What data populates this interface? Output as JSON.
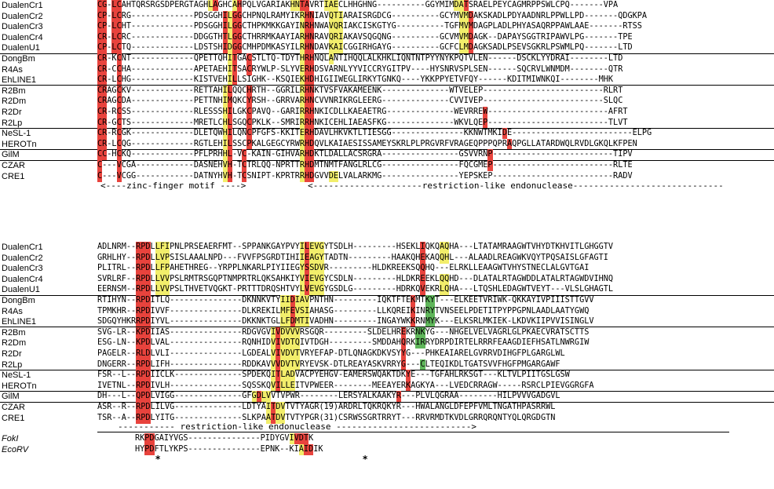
{
  "colors": {
    "R": "#e8433d",
    "Y": "#f2ee6b",
    "G": "#5fb65a"
  },
  "block1": {
    "groups": [
      [
        {
          "name": "DualenCr1",
          "seq": "CG-LCAHTQRSRGSDPERGTAGHLAGHCAHPQLVGARIAKHNTAVRTIAECLHHGHNG----------GGYMIMDATSRAELPEYCAGMRPPSWLCPQ-------VPA",
          "hl": "RRyRRwwwwwwwwwwwwwwwwwwyRwwwyRwwwwwwwwwwyyRRwwwyyywwwwwwwwwwwwwwwwwwwwwwwwyyRwwwwwwwwwwwwwwwwwwwwwwwwwwwwwwwwwwwww"
        },
        {
          "name": "DualenCr2",
          "seq": "CP-LCRG-------------PDSGGHILGGCHPNQLRAMYIKRHNIAVQTIARAISRGDCG----------GCYMVMDAKSKADLPDYAADNRLPPWLLPD-------QDGKPA",
          "hl": "RRwRRwwwwwwwwwwwwwwwwwwwwwRyRRwwwwwwwwwwwwyRRwwwyyywwwwwwwwwwwwwwwwwwwwwwwwyyRwwwwwwwwwwwwwwwwwwwwwwwwwwwwwwwwwwwwww"
        },
        {
          "name": "DualenCr3",
          "seq": "CP-LCHT-------------PDSGGHILGGCTHPKMKKGAYINRHNWAVQRIAKCISKGTYG----------TGFMVMDAGPLADLPHYASAQRPPAWLAAE-------RTSS",
          "hl": "RRwRRwwwwwwwwwwwwwwwwwwwwwRyRRwwwwwwwwwwwwyRRwwwyyywwwwwwwwwwwwwwwwwwwwwwwwyyRwwwwwwwwwwwwwwwwwwwwwwwwwwwwwwwwwwww"
        },
        {
          "name": "DualenCr4",
          "seq": "CR-LCRC-------------DDGGTHTLGGCTHRRMKAAYIARHNRAVQRIAKAVSQGQNG----------GCVMVMDAGK--DAPAYSGGTRIPAWVLPG-------TPE",
          "hl": "RRwRRwwwwwwwwwwwwwwwwwwwwwRyRRwwwwwwwwwwwwyRRwwwyyywwwwwwwwwwwwwwwwwwwwwwwwyyRwwwwwwwwwwwwwwwwwwwwwwwwwwwwwwwwww"
        },
        {
          "name": "DualenU1",
          "seq": "CP-LCTQ-------------LDSTSHIDGGCMHPDMKASYILRHNDAVKAICGGIRHGAYG----------GCFCLMDAGKSADLPSEVSGKRLPSWMLPQ-------LTD",
          "hl": "RRwRRwwwwwwwwwwwwwwwwwwwwwRyRRwwwwwwwwwwwwyRRwwwyyywwwwwwwwwwwwwwwwwwwwwwwwyyRwwwwwwwwwwwwwwwwwwwwwwwwwwwwwwwww"
        }
      ],
      [
        {
          "name": "DongBm",
          "seq": "CR-KCNT-------------QPETTQHITGACSTLTQ-TDYTHRHNQLANTIHQQLALKHKLIQNTNTPYYNYKPQTVLEN------DSCKLYYDRAI--------LTD",
          "hl": "RRwwRwwwwwwwwwwwwwwwwwwwwwwyRwwRwwwwwwwwwwyRRwwwywwwwwwwwwwwwwwwwwwwwwwwwwwwwwwwwwRwwwwwwwwwwwwwwwwwwwwwwwwwwww"
        },
        {
          "name": "R4As",
          "seq": "CR-CCHA-------------APETAEHITSACRYWLP-SLYVERHDSVARNLYYVICCRYGITPV----HYSNRVSPLSEN------SQCRVLWNMDM--------QTR",
          "hl": "RRwwRwwwwwwwwwwwwwwwwwwwwwwyRwwRwwwwwwwwwwyRRwwwwwwwwwwwwwwwwwwwwwwwwwwwwwwwwwwwwRwwwwwwwwwwwwwwwwwwwwwwwwwwww"
        },
        {
          "name": "EhLINE1",
          "seq": "CR-LCHG-------------KISTVEHILLSIGHK--KSQIEKHDHIGIIWEGLIRKYTGNKQ----YKKPPYETVFQY------KDITMIWNKQI--------MHK",
          "hl": "RRwwRwwwwwwwwwwwwwwwwwwwwwwyRwwwwwwwwwwwwwyRRwwwwwwwwwwwwwwwwwwwwwwwwwwwwwwwwwwwwRwwwwwwwwwwwwwwwwwwwwwwwwwwww"
        }
      ],
      [
        {
          "name": "R2Bm",
          "seq": "CRAGCKV-------------RETTAHILQQCHRTH--GGRILRHNKTVSFVAKAMEENK--------------WTVELEP-------------------------RLRT",
          "hl": "RRwwRwwwwwwwwwwwwwwwwwwwwwyRwwwRwwwwwwwwwwyRRwwwwwwwwwwwwwwwwwwwwwwwwwwwwwwwwwwwRwwwwwwwwwwwwwwwwwwwwwwwwwwwww"
        },
        {
          "name": "R2Dm",
          "seq": "CRAGCDA-------------PETTNHIMQKCYRSH--GRRVARHNCVVNRIKRGLEERG--------------CVVIVEP-------------------------SLQC",
          "hl": "RRwwRwwwwwwwwwwwwwwwwwwwwwyRwwwRwwwwwwwwwwyRRwwwwwwwwwwwwwwwwwwwwwwwwwwwwwwwwwwwRwwwwwwwwwwwwwwwwwwwwwwwwwwwww"
        },
        {
          "name": "R2Dr",
          "seq": "CR-RCSS-------------RLESSSHILGKCPAVQ--GARIRRHNKICDLLKAEAETRG--------------WEVRREW-------------------------AFRT",
          "hl": "RRwwRwwwwwwwwwwwwwwwwwwwwwyRwwwRwwwwwwwwwwyRRwwwwwwwwwwwwwwwwwwwwwwwwwwwwwwwwwwwRwwwwwwwwwwwwwwwwwwwwwwwwwwwww"
        },
        {
          "name": "R2Lp",
          "seq": "CR-GCTS-------------MRETLCHLSGQCPKLK--SMRIRRHNKICEHLIAEASFKG--------------WKVLQEP-------------------------TLVT",
          "hl": "RRwwRwwwwwwwwwwwwwwwwwwwwwyRwwwRwwwwwwwwwwyRRwwwwwwwwwwwwwwwwwwwwwwwwwwwwwwwwwwwRwwwwwwwwwwwwwwwwwwwwwwwwwwwww"
        }
      ],
      [
        {
          "name": "NeSL-1",
          "seq": "CR-RCGK-------------DLETQWHILQNCPFGFS-KKITERHDAVLHKVKTLTIESGG---------------KKNWTMKIDE-------------------------ELPG",
          "hl": "RRwwRwwwwwwwwwwwwwwwwwwwwwyRwwwRwwwwwwwwwwyRRwwwwwwwwwwwwwwwwwwwwwwwwwwwwwwwwwwwwwwwRwwwwwwwwwwwwwwwwwwwwwwwwwww"
        },
        {
          "name": "HEROTn",
          "seq": "CR-LCQG-------------RGTLEHILSSCPKALGEGCYRWRHDQVLKAIAESISSAMEYSKRLPLPRGVRFVRAGEQPPPQPRAQPGLLATARDWQLRVDLGKQLKFPEN",
          "hl": "RRwwRwwwwwwwwwwwwwwwwwwwwwyRwwwRwwwwwwwwwwyRRwwwwwwwwwwwwwwwwwwwwwwwwwwwwwwwwwwwwwwwwRwwwwwwwwwwwwwwwwwwwwwwwwww"
        }
      ],
      [
        {
          "name": "GilM",
          "seq": "CC-HCKQ-------------PFLPRHHL-VC-KAIN-GIHVARHDKTLDALLACSRGRA----------------GSVVRNP-------------------------TIPV",
          "hl": "RRwwRwwwwwwwwwwwwwwwwwwwwwyRwwRwwwwwwwwwwwyRRwwwwwwwwwwwwwwwwwwwwwwwwwwwwwwwwwwwwRwwwwwwwwwwwwwwwwwwwwwwwwwwwww"
        }
      ],
      [
        {
          "name": "CZAR",
          "seq": "C---VCGA------------DASNEHVH-TCTRLQQ-NPRTTRHDMTNMTFANGLRLCG----------------FQCGMEP-------------------------RLTE",
          "hl": "RwwwRwwwwwwwwwwwwwwwwwwwwwyRwwRwwwwwwwwwwwyRRwwwwwwwwwwwwwwwwwwwwwwwwwwwwwwwwwwwwRwwwwwwwwwwwwwwwwwwwwwwwwwwwww"
        },
        {
          "name": "CRE1",
          "seq": "C---VCGG------------DATNYHVH-TCSNIPT-KPRTRRHDGVVDELVALARKMG----------------YEPSKEP-------------------------RADV",
          "hl": "RwwwRwwwwwwwwwwwwwwwwwwwwwyRwwRwwwwwwwwwwwyRRwwwyywwwwwwwwwwwwwwwwwwwwwwwwwwwwwwwwRwwwwwwwwwwwwwwwwwwwwwwwwwwwww"
        }
      ]
    ],
    "annot_zinc": "<----zinc-finger motif ---->",
    "annot_endo": "<---------------------restriction-like endonuclease-----------------------------"
  },
  "block2": {
    "groups": [
      [
        {
          "name": "DualenCr1",
          "seq": "ADLNRM--RPDLLFIPNLPRSEAERFMT--SPPANKGAYPVYILEVGYTSDLH---------HSEKLIQKQAQHA---LTATAMRAAGWTVHYDTKHVITLGHGGTV",
          "hl": "wwwwwwwwRRRwyyywwwwwwwwwwwwwwwwwwwwwwwwwwwyRyyywwwwwwwwwwwwwwwwwwwwRwwwyywwwwwwwwwwwwwwwwwwwwwwwwwwwwwwwwwww"
        },
        {
          "name": "DualenCr2",
          "seq": "GRHLHY--RPDLLVPSISLAAALNPD---FVVFPSGRDTIHIIEAGYTADTN---------HAAKQHEKAQQHL---ALAADLREAGWKVQYTPQSAISLGFAGTI",
          "hl": "wwwwwwwwRRRwyyywwwwwwwwwwwwwwwwwwwwwwwwwwwyRyyywwwwwwwwwwwwwwwwwwwwRwwwyywwwwwwwwwwwwwwwwwwwwwwwwwwwwwwwwwww"
        },
        {
          "name": "DualenCr3",
          "seq": "PLITRL--RPDLLFPAHETHREG--YRPPLNKARLPIYIIEGYSSDVR---------HLDKREEKSQQHQ---ELRKLLEAAGWTVHYSTNECLALGVTGAI",
          "hl": "wwwwwwwwRRRwyyywwwwwwwwwwwwwwwwwwwwwwwwwwwyRyyywwwwwwwwwwwwwwwwwwwwRwwwyywwwwwwwwwwwwwwwwwwwwwwwwwwwwwwwwwww"
        },
        {
          "name": "DualenCr4",
          "seq": "SVRLRF--RPDLLVVPSLRMTRSGQPTNMPRTRLQKSAHKIYVIEVGYCSDLN---------HLDKREEKLQQHD---DLATALRTAGWDDLATALRTAGWDVIHNQ",
          "hl": "wwwwwwwwRRRwyyywwwwwwwwwwwwwwwwwwwwwwwwwwwyRyyywwwwwwwwwwwwwwwwwwwwRwwwyywwwwwwwwwwwwwwwwwwwwwwwwwwwwwwwwwww"
        },
        {
          "name": "DualenU1",
          "seq": "EERNSM--RPDLLVVPSLTHVETVQGKT-PRTTTDRQSHTVYLVEVGYGSDLG---------HDRKQVEKRLQHA---LTQSHLEDAGWTVEYT---VLSLGHAGTL",
          "hl": "wwwwwwwwRRRwyyywwwwwwwwwwwwwwwwwwwwwwwwwwwyRyyywwwwwwwwwwwwwwwwwwwwRwwwyywwwwwwwwwwwwwwwwwwwwwwwwwwwwwwwwwww"
        }
      ],
      [
        {
          "name": "DongBm",
          "seq": "RTIHYN--RPDITLQ---------------DKNNKVTYIIDIAVPNTHN---------IQKTFTEKMTKYT---ELKEETVRIWK-QKKAYIVPIIISTTGVV",
          "hl": "wwwwwwwwRRRwwwwwwwwwwwwwwwwwwwwwwwwwwwyyRyyywwwwwwwwwwwwwwwwwwwwwRwwggwwwwwwwwwwwwwwwwwwwwwwwwwwwwwwwwwww"
        },
        {
          "name": "R4As",
          "seq": "TPMKHR--RPDIVVF---------------DLKREKILMFEVSIAHASG---------LLKQREIKINRYTVNSEELPDETITPYPPGPNLAADLAATYGWQ",
          "hl": "wwwwwwwwRRRwwwwwwwwwwwwwwwwwwwwwwwwwwwyyRyyywwwwwwwwwwwwwwwwwwwwwRwwggwwwwwwwwwwwwwwwwwwwwwwwwwwwwwwwwwww"
        },
        {
          "name": "EhLINE1",
          "seq": "SDGQYHKRRPDIYVL---------------DKKNKTGLLFDMTIVADHN---------INGAYWKKRNMYK---ELKSRLMKIEK-LKDVKIIPVVISINGLV",
          "hl": "wwwwwwwwRRRwwwwwwwwwwwwwwwwwwwwwwwwwwwyyRyyywwwwwwwwwwwwwwwwwwwwwRwwggwwwwwwwwwwwwwwwwwwwwwwwwwwwwwwwwwww"
        }
      ],
      [
        {
          "name": "R2Bm",
          "seq": "SVG-LR--KPDIIAS---------------RDGVGVIVDVVVRSGQR---------SLDELHREKRNKYG---NHGELVELVAGRLGLPKAECVRATSCTTS",
          "hl": "wwwwwwwwRRRwwwwwwwwwwwwwwwwwwwwwwwwwyRyyyywwwwwwwwwwwwwwwwwwwwwRwwggwwwwwwwwwwwwwwwwwwwwwwwwwwwwwwwwwww"
        },
        {
          "name": "R2Dm",
          "seq": "ESG-LN--KPDLVAL---------------RQNHIDVIVDTQIVTDGH---------SMDDAHQRKIRRYDRPDIRTELRRRFEAAGDIEFHSATLNWRGIW",
          "hl": "wwwwwwwwRRRwwwwwwwwwwwwwwwwwwwwwwwwwyRyyyywwwwwwwwwwwwwwwwwwwwwRwwggwwwwwwwwwwwwwwwwwwwwwwwwwwwwwwwwwww"
        },
        {
          "name": "R2Dr",
          "seq": "PAGELR--RLDLVLI---------------LGDEALVIVDVTVRYEFAP-DTLQNAGKDKVSYYG---PHKEAIARELGVRRVDIHGFPLGARGLWL",
          "hl": "wwwwwwwwRRRwwwwwwwwwwwwwwwwwwwwwwwwwyRyyyywwwwwwwwwwwwwwwwwwwwwRwwggwwwwwwwwwwwwwwwwwwwwwwwwwwwwwwwwwww"
        },
        {
          "name": "R2Lp",
          "seq": "DNGERR--RPDLIFH---------------RDDKAVVVDVTVRYEVSK-DTLREAYASKVRRYG---CLTEQIKDLTGATSVVFHGFPMGARGAWF",
          "hl": "wwwwwwwwRRRwwwwwwwwwwwwwwwwwwwwwwwwwyRyyyywwwwwwwwwwwwwwwwwwwwwRwwggwwwwwwwwwwwwwwwwwwwwwwwwwwwwwwwwwww"
        }
      ],
      [
        {
          "name": "NeSL-1",
          "seq": "FSR--L--RPDIICLK--------------SPDEKQITLADVACPYEHGV-EAMERSWQAKTDKYE---TGFAHLRKSGT---KLTVLPIITGSLGSW",
          "hl": "wwwwwwwwRRRwwwwwwwwwwwwwwwwwwwwwwwwwyRyyywwwwwwwwwwwwwwwwwwwwwwwRwwwwwwwwwwwwwwwwwwwwwwwwwwwwwwwwwwwww"
        },
        {
          "name": "HEROTn",
          "seq": "IVETNL--RPDIVLH---------------SQSSKQVILLEITVPWEER--------MEEAYERKAGKYA---LVEDCRRAGW-----RSRCLPIEVGGRGFA",
          "hl": "wwwwwwwwRRRwwwwwwwwwwwwwwwwwwwwwwwwwyRyyywwwwwwwwwwwwwwwwwwwwwwwRwwwwwwwwwwwwwwwwwwwwwwwwwwwwwwwwwwwww"
        }
      ],
      [
        {
          "name": "GilM",
          "seq": "DH---L--QPDLVIGG--------------GFGDLVVTVPWR--------LERSYALKAAKYR---PLVLQGRAA--------HILPVVVGADGVL",
          "hl": "wwwwwwwwRRRwwwwwwwwwwwwwwwwwwwwwyRyywwwwwwwwwwwwwwwwwwwwwwwwwwRwwwwwwwwwwwwwwwwwwwwwwwwwwwwwwwwwwwwww"
        }
      ],
      [
        {
          "name": "CZAR",
          "seq": "ASR--R--RPDLILVG--------------LDTYAITDVTVTYAGR(19)ARDRLTQKRQKYR---HWALANGLDFEPFVMLTNGATHPASRRWL",
          "hl": "wwwwwwwwRRRwwwwwwwwwwwwwwwwwwwwwwwwyRyywwwwwwwwwwwwwwwwwwwwwwwwwwRwwwwwwwwwwwwwwwwwwwwwwwwwwwwwwwwwwww"
        },
        {
          "name": "CRE1",
          "seq": "TSR--A--RPDLYITG--------------SLKPAATDVTVTYPGR(31)CSRWSSGRTRRYT---RRVRMDTKVDLGRRQRQNTYQLQRGDGTN",
          "hl": "wwwwwwwwRRRwwwwwwwwwwwwwwwwwwwwwwwwyRyywwwwwwwwwwwwwwwwwwwwwwwwwwRwwwwwwwwwwwwwwwwwwwwwwwwwwwwwwwwwwww"
        }
      ]
    ],
    "annot_endo": "----------- restriction-like endonuclease -------------------------->",
    "refs": [
      {
        "name": "FokI",
        "seq": "RKPDGAIYVGS---------------PIDYGVIVDTK",
        "hl": "wwRRwwwwwwwwwwwwwwwwwwwwwwwwwwwwyRRRw"
      },
      {
        "name": "EcoRV",
        "seq": "HYPDFTLYKPS---------------EPNK--KIAIDIK",
        "hl": "wwRRwwwwwwwwwwwwwwwwwwwwwwwwwwwwwwyRRw"
      }
    ],
    "stars": [
      "*",
      "*"
    ]
  }
}
